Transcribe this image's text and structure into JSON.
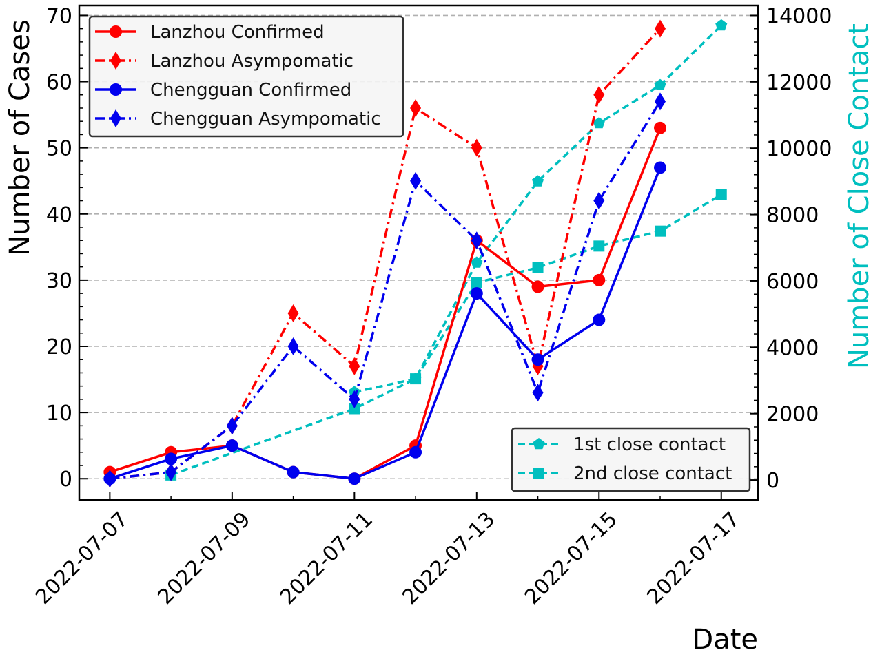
{
  "chart_data": {
    "type": "line",
    "xlabel": "Date",
    "ylabel": "Number of Cases",
    "ylabel_right": "Number of Close Contact",
    "x_ticks": [
      "2022-07-07",
      "2022-07-09",
      "2022-07-11",
      "2022-07-13",
      "2022-07-15",
      "2022-07-17"
    ],
    "y_ticks": [
      0,
      10,
      20,
      30,
      40,
      50,
      60,
      70
    ],
    "y2_ticks": [
      0,
      2000,
      4000,
      6000,
      8000,
      10000,
      12000,
      14000
    ],
    "xlim": [
      "2022-07-06.5",
      "2022-07-17.6"
    ],
    "ylim": [
      -3.2,
      71.5
    ],
    "y2lim": [
      -600,
      14300
    ],
    "grid": "horizontal dashed",
    "legend_left_placement": "top-left",
    "legend_right_placement": "bottom-right",
    "colors": {
      "red": "#ff0000",
      "blue": "#0000ee",
      "cyan": "#00bfbf",
      "grid": "#b0b0b0",
      "right_label": "#00bfbf"
    },
    "series": [
      {
        "name": "Lanzhou Confirmed",
        "axis": "left",
        "color": "#ff0000",
        "dash": "solid",
        "marker": "circle",
        "x": [
          "2022-07-07",
          "2022-07-08",
          "2022-07-09",
          "2022-07-10",
          "2022-07-11",
          "2022-07-12",
          "2022-07-13",
          "2022-07-14",
          "2022-07-15",
          "2022-07-16"
        ],
        "values": [
          1,
          4,
          5,
          1,
          0,
          5,
          36,
          29,
          30,
          53
        ]
      },
      {
        "name": "Lanzhou Asympomatic",
        "axis": "left",
        "color": "#ff0000",
        "dash": "dashdot",
        "marker": "diamond",
        "x": [
          "2022-07-07",
          "2022-07-08",
          "2022-07-09",
          "2022-07-10",
          "2022-07-11",
          "2022-07-12",
          "2022-07-13",
          "2022-07-14",
          "2022-07-15",
          "2022-07-16"
        ],
        "values": [
          0,
          1,
          8,
          25,
          17,
          56,
          50,
          17,
          58,
          68
        ]
      },
      {
        "name": "Chengguan Confirmed",
        "axis": "left",
        "color": "#0000ee",
        "dash": "solid",
        "marker": "circle",
        "x": [
          "2022-07-07",
          "2022-07-08",
          "2022-07-09",
          "2022-07-10",
          "2022-07-11",
          "2022-07-12",
          "2022-07-13",
          "2022-07-14",
          "2022-07-15",
          "2022-07-16"
        ],
        "values": [
          0,
          3,
          5,
          1,
          0,
          4,
          28,
          18,
          24,
          47
        ]
      },
      {
        "name": "Chengguan Asympomatic",
        "axis": "left",
        "color": "#0000ee",
        "dash": "dashdot",
        "marker": "diamond",
        "x": [
          "2022-07-07",
          "2022-07-08",
          "2022-07-09",
          "2022-07-10",
          "2022-07-11",
          "2022-07-12",
          "2022-07-13",
          "2022-07-14",
          "2022-07-15",
          "2022-07-16"
        ],
        "values": [
          0,
          1,
          8,
          20,
          12,
          45,
          36,
          13,
          42,
          57
        ]
      },
      {
        "name": "1st close contact",
        "axis": "right",
        "color": "#00bfbf",
        "dash": "dashed",
        "marker": "pentagon",
        "x": [
          "2022-07-11",
          "2022-07-12",
          "2022-07-13",
          "2022-07-14",
          "2022-07-15",
          "2022-07-16",
          "2022-07-17"
        ],
        "values": [
          2650,
          3050,
          6550,
          9000,
          10750,
          11900,
          13700
        ]
      },
      {
        "name": "2nd close contact",
        "axis": "right",
        "color": "#00bfbf",
        "dash": "dashed",
        "marker": "square",
        "x": [
          "2022-07-08",
          "2022-07-11",
          "2022-07-12",
          "2022-07-13",
          "2022-07-14",
          "2022-07-15",
          "2022-07-16",
          "2022-07-17"
        ],
        "values": [
          150,
          2150,
          3050,
          5950,
          6400,
          7050,
          7500,
          8600
        ]
      }
    ]
  }
}
